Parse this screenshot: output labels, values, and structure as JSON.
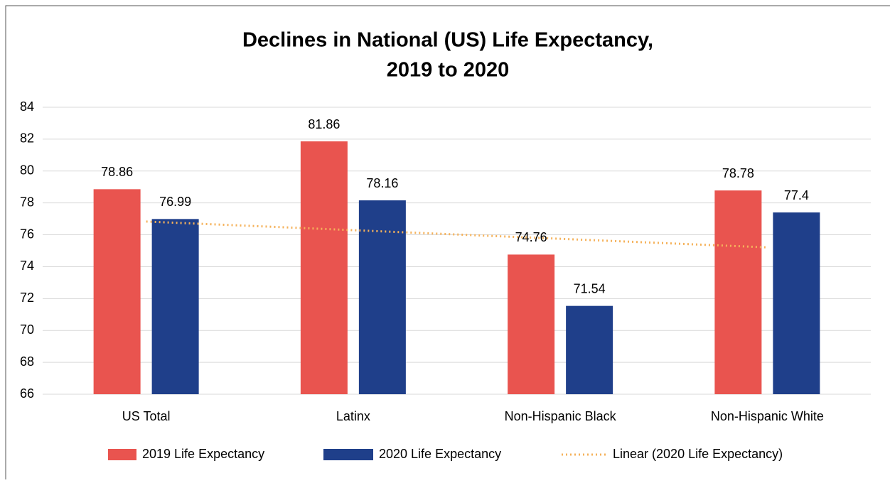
{
  "chart_data": {
    "type": "bar",
    "title": [
      "Declines in National (US) Life Expectancy,",
      "2019 to 2020"
    ],
    "categories": [
      "US Total",
      "Latinx",
      "Non-Hispanic Black",
      "Non-Hispanic White"
    ],
    "series": [
      {
        "name": "2019 Life Expectancy",
        "color": "#e9544f",
        "values": [
          78.86,
          81.86,
          74.76,
          78.78
        ]
      },
      {
        "name": "2020 Life Expectancy",
        "color": "#1f3f8a",
        "values": [
          76.99,
          78.16,
          71.54,
          77.4
        ]
      },
      {
        "name": "Linear (2020 Life Expectancy)",
        "color": "#f5b25b",
        "type": "trendline",
        "values": [
          76.83,
          76.29,
          75.75,
          75.21
        ]
      }
    ],
    "ylim": [
      66,
      84
    ],
    "yticks": [
      66,
      68,
      70,
      72,
      74,
      76,
      78,
      80,
      82,
      84
    ],
    "grid": true,
    "legend": "bottom"
  }
}
